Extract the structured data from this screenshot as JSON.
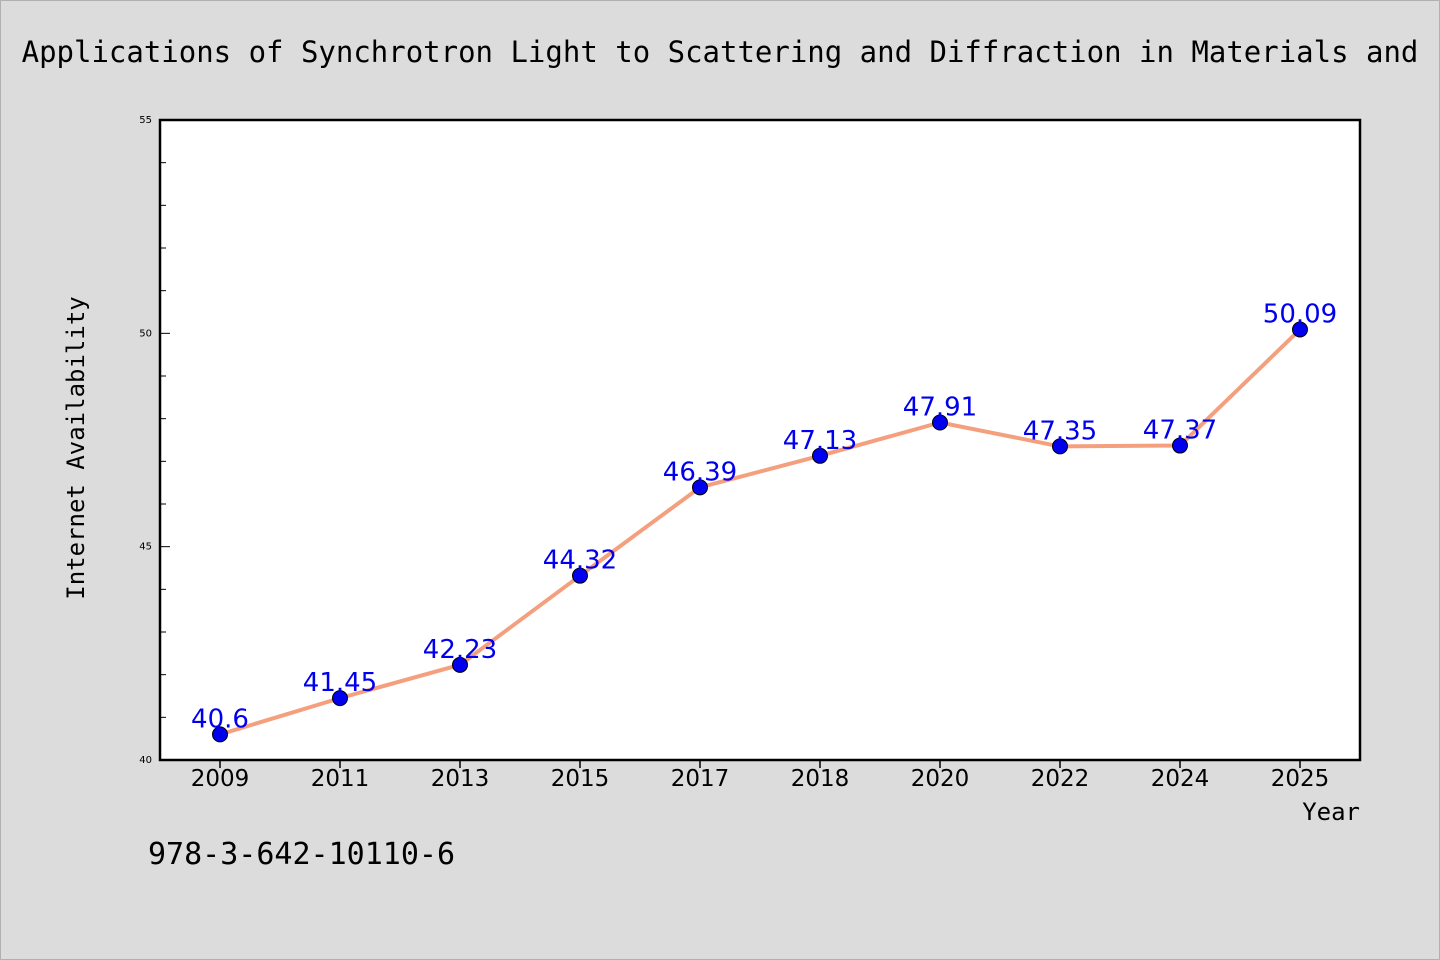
{
  "chart_data": {
    "type": "line",
    "title": "Applications of Synchrotron Light to Scattering and Diffraction in Materials and",
    "xlabel": "Year",
    "ylabel": "Internet Availability",
    "categories": [
      "2009",
      "2011",
      "2013",
      "2015",
      "2017",
      "2018",
      "2020",
      "2022",
      "2024",
      "2025"
    ],
    "series": [
      {
        "values": [
          40.6,
          41.45,
          42.23,
          44.32,
          46.39,
          47.13,
          47.91,
          47.35,
          47.37,
          50.09
        ],
        "labels": [
          "40.6",
          "41.45",
          "42.23",
          "44.32",
          "46.39",
          "47.13",
          "47.91",
          "47.35",
          "47.37",
          "50.09"
        ],
        "line_color": "#f4a07e",
        "marker_color": "#0000ee",
        "label_color": "#0000ee"
      }
    ],
    "ylim": [
      40,
      55
    ],
    "yticks": [
      40,
      45,
      50,
      55
    ],
    "grid": false,
    "legend": "none"
  },
  "footer": {
    "code": "978-3-642-10110-6"
  },
  "colors": {
    "background": "#dcdcdc",
    "plot_background": "#ffffff",
    "axis": "#000000"
  }
}
